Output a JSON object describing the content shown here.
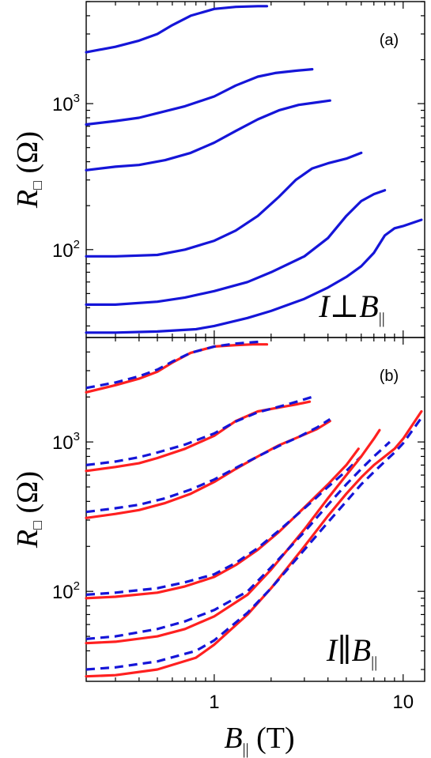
{
  "chart_data": [
    {
      "type": "line",
      "panel_label": "(a)",
      "annotation": {
        "left": "I",
        "op": "⊥",
        "right_main": "B",
        "right_sub": "||"
      },
      "ylabel": {
        "main": "R",
        "sub": "□",
        "unit": "(Ω)"
      },
      "x_scale": "log",
      "y_scale": "log",
      "xlim": [
        0.21,
        13
      ],
      "ylim": [
        25,
        5000
      ],
      "y_ticks": [
        {
          "label_base": "10",
          "label_exp": "2",
          "value": 100
        },
        {
          "label_base": "10",
          "label_exp": "3",
          "value": 1000
        }
      ],
      "grid": false,
      "colors": {
        "measured": "#1515d8"
      },
      "series": [
        {
          "style": "solid",
          "color": "#1515d8",
          "x": [
            0.21,
            0.3,
            0.4,
            0.5,
            0.6,
            0.75,
            1.0,
            1.3,
            1.7,
            1.9
          ],
          "y": [
            2250,
            2450,
            2700,
            3000,
            3450,
            4000,
            4450,
            4600,
            4650,
            4650
          ]
        },
        {
          "style": "solid",
          "color": "#1515d8",
          "x": [
            0.21,
            0.3,
            0.4,
            0.5,
            0.7,
            1.0,
            1.3,
            1.7,
            2.1,
            2.7,
            3.3
          ],
          "y": [
            720,
            760,
            800,
            860,
            960,
            1120,
            1330,
            1530,
            1620,
            1680,
            1720
          ]
        },
        {
          "style": "solid",
          "color": "#1515d8",
          "x": [
            0.21,
            0.3,
            0.4,
            0.55,
            0.75,
            1.0,
            1.3,
            1.7,
            2.2,
            2.8,
            3.5,
            4.1
          ],
          "y": [
            350,
            370,
            380,
            410,
            460,
            540,
            650,
            780,
            900,
            980,
            1020,
            1050
          ]
        },
        {
          "style": "solid",
          "color": "#1515d8",
          "x": [
            0.21,
            0.3,
            0.5,
            0.7,
            1.0,
            1.3,
            1.7,
            2.2,
            2.7,
            3.3,
            4.0,
            5.0,
            6.0
          ],
          "y": [
            90,
            90,
            92,
            100,
            115,
            135,
            170,
            230,
            300,
            360,
            390,
            420,
            460
          ]
        },
        {
          "style": "solid",
          "color": "#1515d8",
          "x": [
            0.21,
            0.3,
            0.5,
            0.7,
            1.0,
            1.5,
            2.0,
            3.0,
            4.0,
            5.0,
            6.0,
            7.0,
            8.0
          ],
          "y": [
            42,
            42,
            44,
            47,
            52,
            60,
            70,
            90,
            120,
            170,
            215,
            240,
            255
          ]
        },
        {
          "style": "solid",
          "color": "#1515d8",
          "x": [
            0.21,
            0.3,
            0.5,
            0.8,
            1.0,
            1.5,
            2.0,
            3.0,
            4.0,
            5.0,
            6.0,
            7.0,
            8.0,
            9.0,
            10.0,
            12.5
          ],
          "y": [
            27,
            27,
            27.5,
            28.5,
            30,
            34,
            38,
            46,
            55,
            65,
            77,
            95,
            125,
            140,
            145,
            160
          ]
        }
      ]
    },
    {
      "type": "line",
      "panel_label": "(b)",
      "annotation": {
        "left": "I",
        "op": "∥",
        "right_main": "B",
        "right_sub": "||"
      },
      "ylabel": {
        "main": "R",
        "sub": "□",
        "unit": "(Ω)"
      },
      "xlabel": {
        "main": "B",
        "sub": "||",
        "unit": "(T)"
      },
      "x_scale": "log",
      "y_scale": "log",
      "xlim": [
        0.21,
        13
      ],
      "ylim": [
        25,
        5000
      ],
      "x_ticks": [
        {
          "label": "1",
          "value": 1
        },
        {
          "label": "10",
          "value": 10
        }
      ],
      "y_ticks": [
        {
          "label_base": "10",
          "label_exp": "2",
          "value": 100
        },
        {
          "label_base": "10",
          "label_exp": "3",
          "value": 1000
        }
      ],
      "grid": false,
      "colors": {
        "measured": "#ff2020",
        "fit": "#1515d8"
      },
      "series": [
        {
          "style": "solid",
          "color": "#ff2020",
          "x": [
            0.21,
            0.3,
            0.4,
            0.5,
            0.6,
            0.75,
            1.0,
            1.3,
            1.6,
            1.9
          ],
          "y": [
            2150,
            2400,
            2650,
            2950,
            3400,
            3950,
            4350,
            4450,
            4500,
            4500
          ]
        },
        {
          "style": "dashed",
          "color": "#1515d8",
          "x": [
            0.21,
            0.3,
            0.4,
            0.5,
            0.6,
            0.75,
            1.0,
            1.3,
            1.6,
            1.8
          ],
          "y": [
            2300,
            2500,
            2750,
            3050,
            3450,
            3950,
            4350,
            4550,
            4650,
            4700
          ]
        },
        {
          "style": "solid",
          "color": "#ff2020",
          "x": [
            0.21,
            0.3,
            0.4,
            0.5,
            0.7,
            1.0,
            1.3,
            1.7,
            2.2,
            2.7,
            3.2
          ],
          "y": [
            640,
            680,
            720,
            780,
            900,
            1100,
            1380,
            1600,
            1700,
            1780,
            1860
          ]
        },
        {
          "style": "dashed",
          "color": "#1515d8",
          "x": [
            0.21,
            0.3,
            0.4,
            0.5,
            0.7,
            1.0,
            1.3,
            1.7,
            2.2,
            2.7,
            3.3
          ],
          "y": [
            700,
            740,
            790,
            850,
            960,
            1140,
            1370,
            1580,
            1720,
            1850,
            2000
          ]
        },
        {
          "style": "solid",
          "color": "#ff2020",
          "x": [
            0.21,
            0.3,
            0.4,
            0.55,
            0.75,
            1.0,
            1.3,
            1.7,
            2.2,
            2.8,
            3.5,
            4.1
          ],
          "y": [
            310,
            330,
            350,
            390,
            450,
            540,
            660,
            800,
            950,
            1080,
            1220,
            1380
          ]
        },
        {
          "style": "dashed",
          "color": "#1515d8",
          "x": [
            0.21,
            0.3,
            0.4,
            0.55,
            0.75,
            1.0,
            1.3,
            1.7,
            2.2,
            2.8,
            3.5,
            4.1
          ],
          "y": [
            340,
            360,
            380,
            420,
            480,
            560,
            670,
            800,
            940,
            1080,
            1250,
            1420
          ]
        },
        {
          "style": "solid",
          "color": "#ff2020",
          "x": [
            0.21,
            0.3,
            0.5,
            0.7,
            1.0,
            1.3,
            1.7,
            2.2,
            2.7,
            3.3,
            4.0,
            5.0,
            5.8
          ],
          "y": [
            90,
            92,
            98,
            108,
            125,
            150,
            190,
            250,
            320,
            410,
            520,
            700,
            900
          ]
        },
        {
          "style": "dashed",
          "color": "#1515d8",
          "x": [
            0.21,
            0.3,
            0.5,
            0.7,
            1.0,
            1.3,
            1.7,
            2.2,
            2.7,
            3.3,
            4.0,
            5.0,
            6.0
          ],
          "y": [
            95,
            98,
            105,
            115,
            130,
            155,
            195,
            255,
            320,
            400,
            500,
            640,
            800
          ]
        },
        {
          "style": "solid",
          "color": "#ff2020",
          "x": [
            0.21,
            0.3,
            0.5,
            0.7,
            1.0,
            1.5,
            2.0,
            3.0,
            4.0,
            5.0,
            6.0,
            7.0,
            7.5
          ],
          "y": [
            45,
            46,
            50,
            56,
            68,
            95,
            140,
            260,
            420,
            600,
            800,
            1050,
            1200
          ]
        },
        {
          "style": "dashed",
          "color": "#1515d8",
          "x": [
            0.21,
            0.3,
            0.5,
            0.7,
            1.0,
            1.5,
            2.0,
            3.0,
            4.0,
            5.0,
            6.0,
            7.0,
            8.5
          ],
          "y": [
            48,
            50,
            56,
            63,
            75,
            100,
            145,
            250,
            380,
            520,
            660,
            800,
            1000
          ]
        },
        {
          "style": "solid",
          "color": "#ff2020",
          "x": [
            0.21,
            0.3,
            0.5,
            0.8,
            1.0,
            1.5,
            2.0,
            3.0,
            4.0,
            5.0,
            6.0,
            7.0,
            8.0,
            9.0,
            10.0,
            12.5
          ],
          "y": [
            27,
            27.5,
            30,
            36,
            44,
            70,
            105,
            200,
            320,
            450,
            580,
            700,
            800,
            900,
            1050,
            1600
          ]
        },
        {
          "style": "dashed",
          "color": "#1515d8",
          "x": [
            0.21,
            0.3,
            0.5,
            0.8,
            1.0,
            1.5,
            2.0,
            3.0,
            4.0,
            5.0,
            6.0,
            7.0,
            8.0,
            9.0,
            10.0,
            12.5
          ],
          "y": [
            30,
            31,
            34,
            40,
            47,
            72,
            105,
            190,
            290,
            400,
            520,
            630,
            740,
            850,
            980,
            1450
          ]
        }
      ]
    }
  ]
}
